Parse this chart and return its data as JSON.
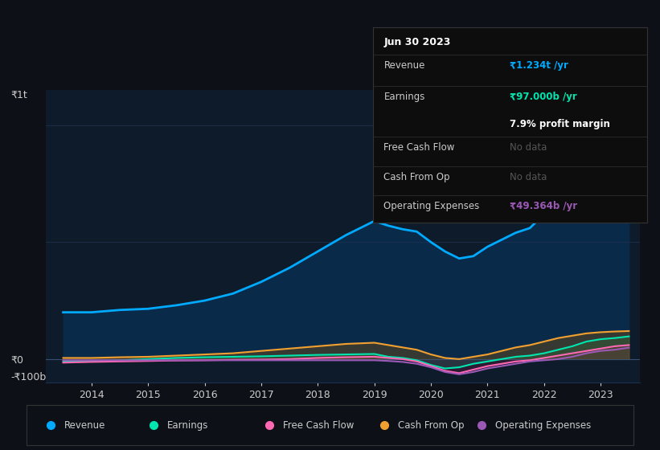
{
  "bg_color": "#0d1117",
  "plot_bg_color": "#0d1b2a",
  "grid_color": "#1e3050",
  "text_color": "#cccccc",
  "title_color": "#ffffff",
  "years": [
    2013.5,
    2014,
    2014.5,
    2015,
    2015.5,
    2016,
    2016.5,
    2017,
    2017.5,
    2018,
    2018.5,
    2019,
    2019.25,
    2019.5,
    2019.75,
    2020,
    2020.25,
    2020.5,
    2020.75,
    2021,
    2021.25,
    2021.5,
    2021.75,
    2022,
    2022.25,
    2022.5,
    2022.75,
    2023,
    2023.25,
    2023.5
  ],
  "revenue": [
    200,
    200,
    210,
    215,
    230,
    250,
    280,
    330,
    390,
    460,
    530,
    590,
    570,
    555,
    545,
    500,
    460,
    430,
    440,
    480,
    510,
    540,
    560,
    620,
    720,
    860,
    980,
    1100,
    1200,
    1234
  ],
  "earnings": [
    -10,
    -8,
    -5,
    0,
    5,
    8,
    10,
    12,
    15,
    18,
    20,
    22,
    10,
    5,
    -5,
    -25,
    -40,
    -35,
    -20,
    -10,
    0,
    10,
    15,
    25,
    40,
    55,
    75,
    85,
    90,
    97
  ],
  "free_cash_flow": [
    -15,
    -12,
    -10,
    -8,
    -6,
    -5,
    -3,
    -2,
    0,
    5,
    8,
    10,
    5,
    0,
    -10,
    -30,
    -50,
    -60,
    -45,
    -30,
    -20,
    -10,
    -5,
    5,
    15,
    25,
    35,
    45,
    55,
    60
  ],
  "cash_from_op": [
    5,
    5,
    8,
    10,
    15,
    20,
    25,
    35,
    45,
    55,
    65,
    70,
    60,
    50,
    40,
    20,
    5,
    0,
    10,
    20,
    35,
    50,
    60,
    75,
    90,
    100,
    110,
    115,
    118,
    120
  ],
  "operating_expenses": [
    -5,
    -5,
    -5,
    -5,
    -5,
    -5,
    -5,
    -5,
    -5,
    -5,
    -5,
    -5,
    -8,
    -12,
    -20,
    -35,
    -55,
    -65,
    -55,
    -40,
    -30,
    -20,
    -10,
    -5,
    0,
    10,
    25,
    35,
    40,
    49
  ],
  "ylim_min": -100,
  "ylim_max": 1150,
  "ylabel_top": "₹1t",
  "ylabel_zero": "₹0",
  "ylabel_bottom": "-₹100b",
  "revenue_color": "#00aaff",
  "revenue_fill": "#0a2a4a",
  "earnings_color": "#00e5b0",
  "free_cash_flow_color": "#ff69b4",
  "cash_from_op_color": "#f0a030",
  "operating_expenses_color": "#9b59b6",
  "tooltip_bg": "#0d0d0d",
  "tooltip_border": "#333333",
  "tooltip_title": "Jun 30 2023",
  "tooltip_revenue": "₹1.234t /yr",
  "tooltip_earnings": "₹97.000b /yr",
  "tooltip_margin": "7.9% profit margin",
  "tooltip_free_cash_flow": "No data",
  "tooltip_cash_from_op": "No data",
  "tooltip_op_expenses": "₹49.364b /yr",
  "tooltip_revenue_color": "#00aaff",
  "tooltip_earnings_color": "#00e5b0",
  "tooltip_op_expenses_color": "#9b59b6",
  "legend_items": [
    "Revenue",
    "Earnings",
    "Free Cash Flow",
    "Cash From Op",
    "Operating Expenses"
  ],
  "legend_colors": [
    "#00aaff",
    "#00e5b0",
    "#ff69b4",
    "#f0a030",
    "#9b59b6"
  ],
  "x_ticks": [
    2014,
    2015,
    2016,
    2017,
    2018,
    2019,
    2020,
    2021,
    2022,
    2023
  ]
}
